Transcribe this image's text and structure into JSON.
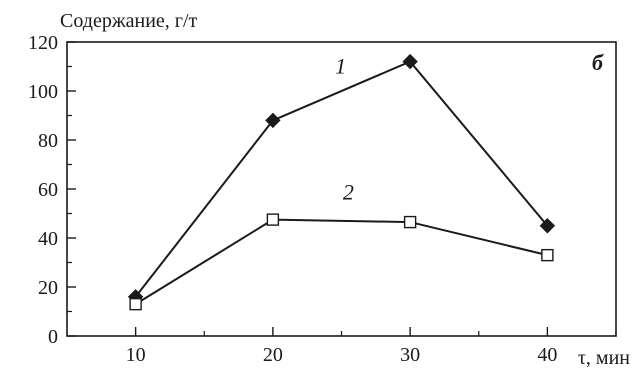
{
  "chart_data": {
    "type": "line",
    "ylabel": "Содержание, г/т",
    "xlabel": "τ, мин",
    "panel_label": "б",
    "x": [
      10,
      20,
      30,
      40
    ],
    "x_ticks": [
      "10",
      "20",
      "30",
      "40"
    ],
    "y_ticks": [
      "0",
      "20",
      "40",
      "60",
      "80",
      "100",
      "120"
    ],
    "xlim": [
      5,
      45
    ],
    "ylim": [
      0,
      120
    ],
    "grid": false,
    "series": [
      {
        "name": "1",
        "values": [
          16,
          88,
          112,
          45
        ],
        "marker": "filled-diamond",
        "color": "#1a1a1a"
      },
      {
        "name": "2",
        "values": [
          13,
          47.5,
          46.5,
          33
        ],
        "marker": "open-square",
        "color": "#1a1a1a"
      }
    ]
  }
}
